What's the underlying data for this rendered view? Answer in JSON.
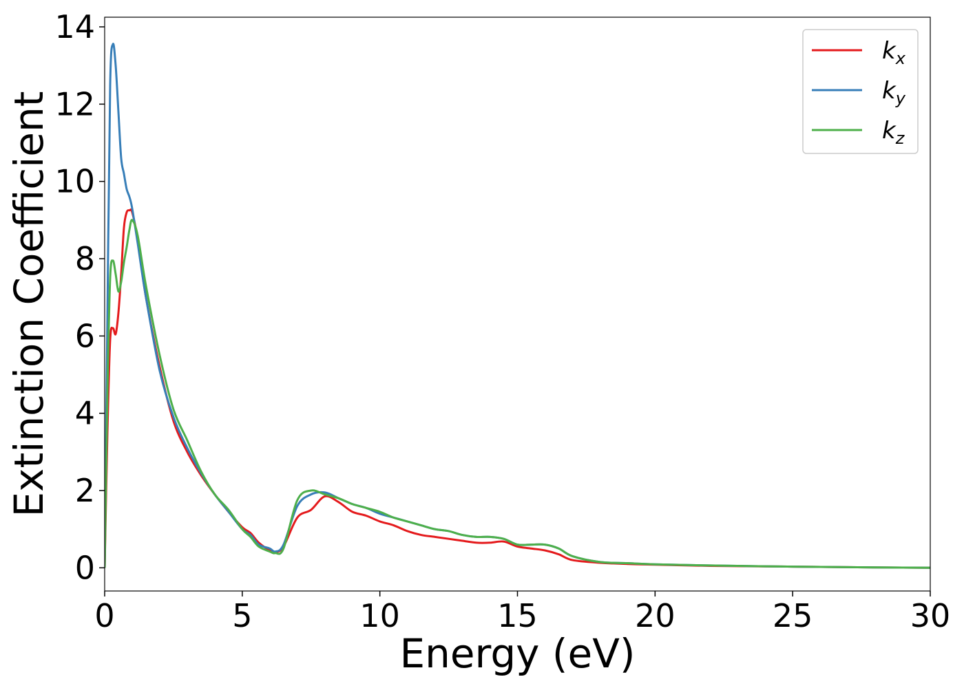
{
  "chart_data": {
    "type": "line",
    "xlabel": "Energy (eV)",
    "ylabel": "Extinction Coefficient",
    "xlim": [
      0,
      30
    ],
    "ylim": [
      -0.6,
      14.25
    ],
    "xticks": [
      0,
      5,
      10,
      15,
      20,
      25,
      30
    ],
    "yticks": [
      0,
      2,
      4,
      6,
      8,
      10,
      12,
      14
    ],
    "grid": false,
    "legend_position": "top-right",
    "series": [
      {
        "name": "k",
        "subscript": "x",
        "color": "#e41a1c",
        "x": [
          0,
          0.1,
          0.2,
          0.3,
          0.4,
          0.5,
          0.6,
          0.7,
          0.8,
          0.9,
          1.0,
          1.2,
          1.5,
          2.0,
          2.5,
          3.0,
          3.5,
          4.0,
          4.5,
          5.0,
          5.3,
          5.6,
          6.0,
          6.2,
          6.5,
          7.0,
          7.5,
          8.0,
          8.5,
          9.0,
          9.5,
          10.0,
          10.5,
          11.0,
          11.5,
          12.0,
          12.5,
          13.0,
          13.5,
          14.0,
          14.5,
          15.0,
          15.5,
          16.0,
          16.5,
          17.0,
          18.0,
          19.0,
          20.0,
          22.0,
          25.0,
          28.0,
          30.0
        ],
        "values": [
          0,
          3.5,
          5.9,
          6.2,
          6.05,
          6.6,
          7.6,
          8.8,
          9.2,
          9.25,
          9.2,
          8.5,
          7.0,
          5.2,
          3.8,
          3.0,
          2.4,
          1.9,
          1.45,
          1.05,
          0.9,
          0.65,
          0.45,
          0.4,
          0.55,
          1.3,
          1.5,
          1.85,
          1.7,
          1.45,
          1.35,
          1.2,
          1.1,
          0.95,
          0.85,
          0.8,
          0.75,
          0.7,
          0.65,
          0.65,
          0.68,
          0.55,
          0.5,
          0.45,
          0.35,
          0.2,
          0.13,
          0.1,
          0.08,
          0.05,
          0.03,
          0.01,
          0.0
        ]
      },
      {
        "name": "k",
        "subscript": "y",
        "color": "#377eb8",
        "x": [
          0,
          0.1,
          0.2,
          0.3,
          0.4,
          0.5,
          0.6,
          0.7,
          0.8,
          0.9,
          1.0,
          1.2,
          1.5,
          2.0,
          2.5,
          3.0,
          3.5,
          4.0,
          4.5,
          5.0,
          5.3,
          5.6,
          6.0,
          6.2,
          6.5,
          7.0,
          7.5,
          8.0,
          8.5,
          9.0,
          9.5,
          10.0,
          10.5,
          11.0,
          11.5,
          12.0,
          12.5,
          13.0,
          13.5,
          14.0,
          14.5,
          15.0,
          15.5,
          16.0,
          16.5,
          17.0,
          18.0,
          19.0,
          20.0,
          22.0,
          25.0,
          28.0,
          30.0
        ],
        "values": [
          0,
          6.5,
          12.5,
          13.55,
          13.0,
          11.8,
          10.6,
          10.2,
          9.8,
          9.6,
          9.3,
          8.4,
          7.0,
          5.1,
          3.9,
          3.1,
          2.45,
          1.9,
          1.45,
          1.0,
          0.85,
          0.6,
          0.5,
          0.42,
          0.6,
          1.6,
          1.9,
          1.95,
          1.8,
          1.65,
          1.55,
          1.4,
          1.3,
          1.2,
          1.1,
          1.0,
          0.95,
          0.85,
          0.8,
          0.8,
          0.75,
          0.6,
          0.6,
          0.6,
          0.5,
          0.3,
          0.15,
          0.12,
          0.09,
          0.06,
          0.03,
          0.01,
          0.0
        ]
      },
      {
        "name": "k",
        "subscript": "z",
        "color": "#4daf4a",
        "x": [
          0,
          0.1,
          0.2,
          0.3,
          0.4,
          0.5,
          0.6,
          0.7,
          0.8,
          0.9,
          1.0,
          1.2,
          1.5,
          2.0,
          2.5,
          3.0,
          3.5,
          4.0,
          4.5,
          5.0,
          5.3,
          5.6,
          6.0,
          6.2,
          6.5,
          7.0,
          7.5,
          8.0,
          8.5,
          9.0,
          9.5,
          10.0,
          10.5,
          11.0,
          11.5,
          12.0,
          12.5,
          13.0,
          13.5,
          14.0,
          14.5,
          15.0,
          15.5,
          16.0,
          16.5,
          17.0,
          18.0,
          19.0,
          20.0,
          22.0,
          25.0,
          28.0,
          30.0
        ],
        "values": [
          0,
          4.5,
          7.5,
          7.95,
          7.6,
          7.15,
          7.4,
          7.9,
          8.3,
          8.75,
          9.0,
          8.6,
          7.3,
          5.5,
          4.1,
          3.3,
          2.5,
          1.9,
          1.5,
          1.0,
          0.8,
          0.55,
          0.42,
          0.38,
          0.5,
          1.75,
          2.0,
          1.9,
          1.8,
          1.65,
          1.55,
          1.45,
          1.3,
          1.2,
          1.1,
          1.0,
          0.95,
          0.85,
          0.8,
          0.8,
          0.75,
          0.6,
          0.6,
          0.6,
          0.5,
          0.3,
          0.15,
          0.12,
          0.09,
          0.06,
          0.03,
          0.01,
          0.0
        ]
      }
    ]
  }
}
